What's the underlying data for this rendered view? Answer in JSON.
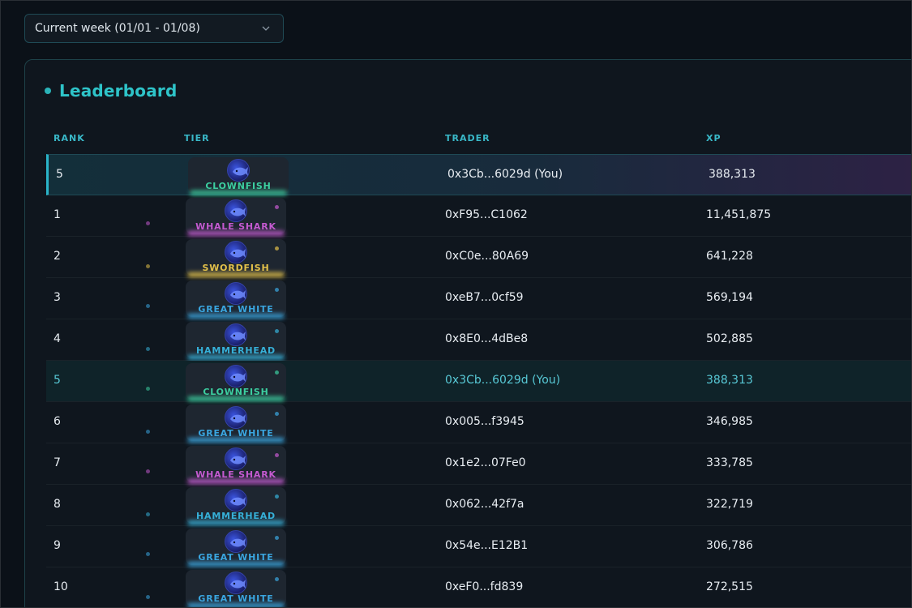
{
  "filter": {
    "week_label": "Current week (01/01 - 01/08)"
  },
  "leaderboard": {
    "title": "Leaderboard",
    "columns": {
      "rank": "RANK",
      "tier": "TIER",
      "trader": "TRADER",
      "xp": "XP"
    },
    "pinned": {
      "rank": "5",
      "tier": "CLOWNFISH",
      "tier_color": "#3ccfa0",
      "trader": "0x3Cb...6029d (You)",
      "xp": "388,313",
      "icon": "clownfish-icon"
    },
    "rows": [
      {
        "rank": "1",
        "tier": "WHALE SHARK",
        "tier_color": "#c45ad0",
        "trader": "0xF95...C1062",
        "xp": "11,451,875",
        "icon": "whale-shark-icon",
        "you": false
      },
      {
        "rank": "2",
        "tier": "SWORDFISH",
        "tier_color": "#e3c14a",
        "trader": "0xC0e...80A69",
        "xp": "641,228",
        "icon": "swordfish-icon",
        "you": false
      },
      {
        "rank": "3",
        "tier": "GREAT WHITE",
        "tier_color": "#3aa6e0",
        "trader": "0xeB7...0cf59",
        "xp": "569,194",
        "icon": "great-white-icon",
        "you": false
      },
      {
        "rank": "4",
        "tier": "HAMMERHEAD",
        "tier_color": "#36b0d8",
        "trader": "0x8E0...4dBe8",
        "xp": "502,885",
        "icon": "hammerhead-icon",
        "you": false
      },
      {
        "rank": "5",
        "tier": "CLOWNFISH",
        "tier_color": "#3ccfa0",
        "trader": "0x3Cb...6029d (You)",
        "xp": "388,313",
        "icon": "clownfish-icon",
        "you": true
      },
      {
        "rank": "6",
        "tier": "GREAT WHITE",
        "tier_color": "#3aa6e0",
        "trader": "0x005...f3945",
        "xp": "346,985",
        "icon": "great-white-icon",
        "you": false
      },
      {
        "rank": "7",
        "tier": "WHALE SHARK",
        "tier_color": "#c45ad0",
        "trader": "0x1e2...07Fe0",
        "xp": "333,785",
        "icon": "whale-shark-icon",
        "you": false
      },
      {
        "rank": "8",
        "tier": "HAMMERHEAD",
        "tier_color": "#36b0d8",
        "trader": "0x062...42f7a",
        "xp": "322,719",
        "icon": "hammerhead-icon",
        "you": false
      },
      {
        "rank": "9",
        "tier": "GREAT WHITE",
        "tier_color": "#3aa6e0",
        "trader": "0x54e...E12B1",
        "xp": "306,786",
        "icon": "great-white-icon",
        "you": false
      },
      {
        "rank": "10",
        "tier": "GREAT WHITE",
        "tier_color": "#3aa6e0",
        "trader": "0xeF0...fd839",
        "xp": "272,515",
        "icon": "great-white-icon",
        "you": false
      }
    ]
  }
}
